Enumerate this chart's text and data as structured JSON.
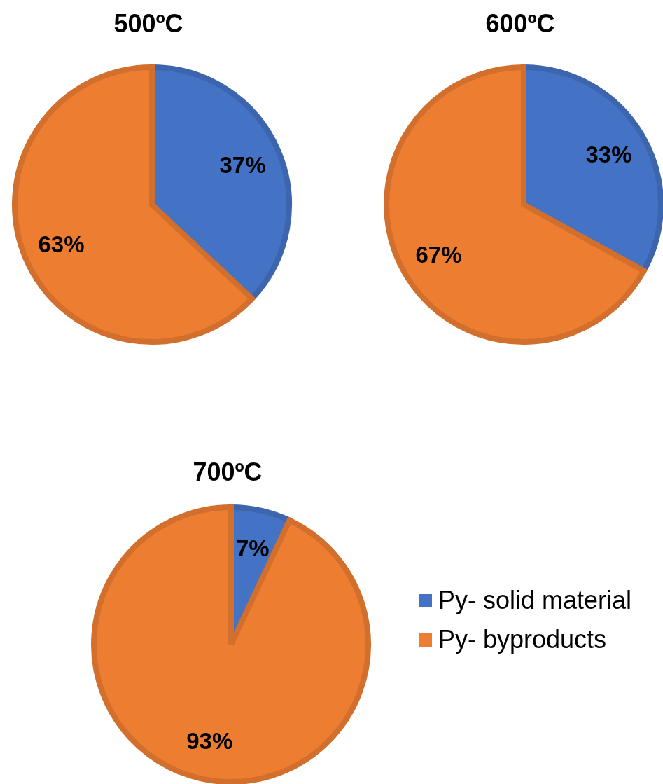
{
  "chart_data": [
    {
      "type": "pie",
      "title": "500ºC",
      "categories": [
        null,
        null
      ],
      "values": [
        37,
        63
      ],
      "colors": [
        "#4472c4",
        "#ed7d31"
      ],
      "value_labels": [
        "37%",
        "63%"
      ]
    },
    {
      "type": "pie",
      "title": "600ºC",
      "categories": [
        null,
        null
      ],
      "values": [
        33,
        67
      ],
      "colors": [
        "#4472c4",
        "#ed7d31"
      ],
      "value_labels": [
        "33%",
        "67%"
      ]
    },
    {
      "type": "pie",
      "title": "700ºC",
      "categories": [
        "Py- solid material",
        "Py- byproducts"
      ],
      "values": [
        7,
        93
      ],
      "colors": [
        "#4472c4",
        "#ed7d31"
      ],
      "value_labels": [
        "7%",
        "93%"
      ],
      "legend": "right"
    }
  ]
}
